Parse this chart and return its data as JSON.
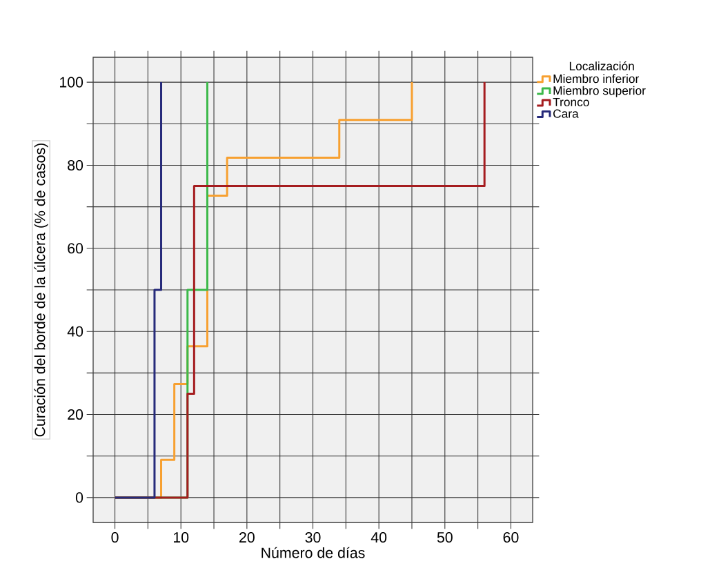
{
  "chart_data": {
    "type": "step",
    "xlabel": "Número de días",
    "ylabel": "Curación del borde de la úlcera (% de casos)",
    "legend_title": "Localización",
    "legend": "top right",
    "grid": true,
    "xlim": [
      -3.3,
      63.3
    ],
    "ylim": [
      -6,
      106
    ],
    "xticks": [
      0,
      {
        "value": 5,
        "label": null
      },
      10,
      {
        "value": 15,
        "label": null
      },
      20,
      {
        "value": 25,
        "label": null
      },
      30,
      {
        "value": 35,
        "label": null
      },
      40,
      {
        "value": 45,
        "label": null
      },
      50,
      {
        "value": 55,
        "label": null
      },
      60
    ],
    "yticks": [
      0,
      {
        "value": 10,
        "label": null
      },
      20,
      {
        "value": 30,
        "label": null
      },
      40,
      {
        "value": 50,
        "label": null
      },
      60,
      {
        "value": 70,
        "label": null
      },
      80,
      {
        "value": 90,
        "label": null
      },
      100
    ],
    "series": [
      {
        "name": "Miembro inferior",
        "color": "#f7a030",
        "x": [
          0,
          7,
          7,
          9,
          9,
          11,
          11,
          14,
          14,
          17,
          17,
          34,
          34,
          45,
          45
        ],
        "values": [
          0,
          0,
          9.1,
          9.1,
          27.3,
          27.3,
          36.4,
          36.4,
          72.7,
          72.7,
          81.8,
          81.8,
          90.9,
          90.9,
          100
        ]
      },
      {
        "name": "Miembro superior",
        "color": "#3cb94a",
        "x": [
          0,
          11,
          11,
          14,
          14
        ],
        "values": [
          0,
          0,
          50,
          50,
          100
        ]
      },
      {
        "name": "Tronco",
        "color": "#a51c1f",
        "x": [
          0,
          11,
          11,
          12,
          12,
          56,
          56
        ],
        "values": [
          0,
          0,
          25,
          25,
          75,
          75,
          100
        ]
      },
      {
        "name": "Cara",
        "color": "#262a7a",
        "x": [
          0,
          6,
          6,
          7,
          7
        ],
        "values": [
          0,
          0,
          50,
          50,
          100
        ]
      }
    ]
  }
}
